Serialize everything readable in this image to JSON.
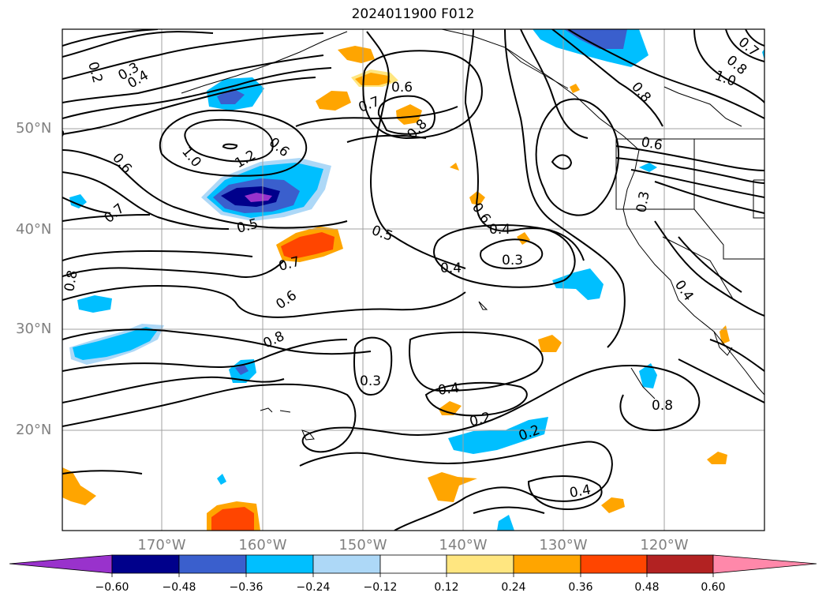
{
  "title": "2024011900 F012",
  "lat_labels": [
    "50°N",
    "40°N",
    "30°N",
    "20°N"
  ],
  "lon_labels": [
    "170°W",
    "160°W",
    "150°W",
    "140°W",
    "130°W",
    "120°W"
  ],
  "contour_labels": [
    "0.2",
    "0.3",
    "0.4",
    "0.5",
    "0.6",
    "0.7",
    "0.8",
    "1.0",
    "1.2",
    "0.6",
    "0.5",
    "0.7",
    "0.6",
    "0.8",
    "0.5",
    "0.6",
    "0.7",
    "0.8",
    "0.6",
    "0.4",
    "0.3",
    "0.4",
    "0.3",
    "0.4",
    "0.2",
    "0.2",
    "0.4",
    "0.8",
    "0.3",
    "0.6",
    "0.7",
    "0.8",
    "1.0",
    "0.8",
    "0.4",
    "0.8",
    "0.6",
    "0.5",
    "0.6",
    "0.7",
    "0.4"
  ],
  "colorbar": {
    "ticks": [
      "−0.60",
      "−0.48",
      "−0.36",
      "−0.24",
      "−0.12",
      "0.12",
      "0.24",
      "0.36",
      "0.48",
      "0.60"
    ],
    "colors": {
      "under": "#9932cc",
      "bins": [
        "#00008b",
        "#3a5fcd",
        "#00bfff",
        "#add8f7",
        "#ffffff",
        "#ffe680",
        "#ffa500",
        "#ff4500",
        "#b22222"
      ],
      "over": "#ff88aa"
    }
  },
  "colors": {
    "grid": "#a0a0a0",
    "contour": "#000000",
    "axis_label": "#808080"
  }
}
